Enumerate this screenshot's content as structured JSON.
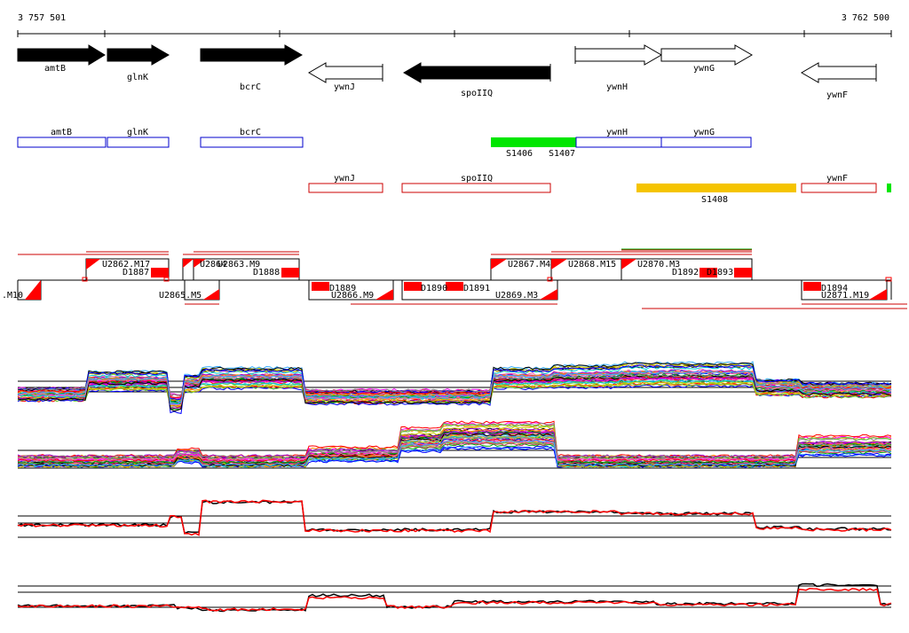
{
  "ruler": {
    "start_label": "3 757 501",
    "end_label": "3 762 500"
  },
  "genes": [
    {
      "name": "amtB",
      "strand": "+",
      "filled": true
    },
    {
      "name": "glnK",
      "strand": "+",
      "filled": true
    },
    {
      "name": "bcrC",
      "strand": "+",
      "filled": true
    },
    {
      "name": "ywnJ",
      "strand": "-",
      "filled": false
    },
    {
      "name": "spoIIQ",
      "strand": "-",
      "filled": true
    },
    {
      "name": "ywnH",
      "strand": "+",
      "filled": false
    },
    {
      "name": "ywnG",
      "strand": "+",
      "filled": false
    },
    {
      "name": "ywnF",
      "strand": "-",
      "filled": false
    }
  ],
  "forward_boxes": [
    "amtB",
    "glnK",
    "bcrC",
    "ywnH",
    "ywnG"
  ],
  "reverse_boxes": [
    "ywnJ",
    "spoIIQ",
    "ywnF"
  ],
  "segments": [
    {
      "label": "S1406",
      "color": "#00e600"
    },
    {
      "label": "S1407",
      "color": "#00e600"
    },
    {
      "label": "S1408",
      "color": "#f5c400"
    }
  ],
  "upper_labels": [
    "U2862.M17",
    "U2863.M9",
    "U2864",
    "D1887",
    "D1888",
    "U2867.M4",
    "U2868.M15",
    "U2870.M3",
    "D1892",
    "D1893"
  ],
  "lower_labels": [
    ".M10",
    "U2865.M5",
    "D1889",
    "U2866.M9",
    "D1890",
    "D1891",
    "U2869.M3",
    "D1894",
    "U2871.M19"
  ],
  "colors": {
    "forward": "#0000cc",
    "reverse": "#cc0000",
    "marker": "#ff0000"
  }
}
